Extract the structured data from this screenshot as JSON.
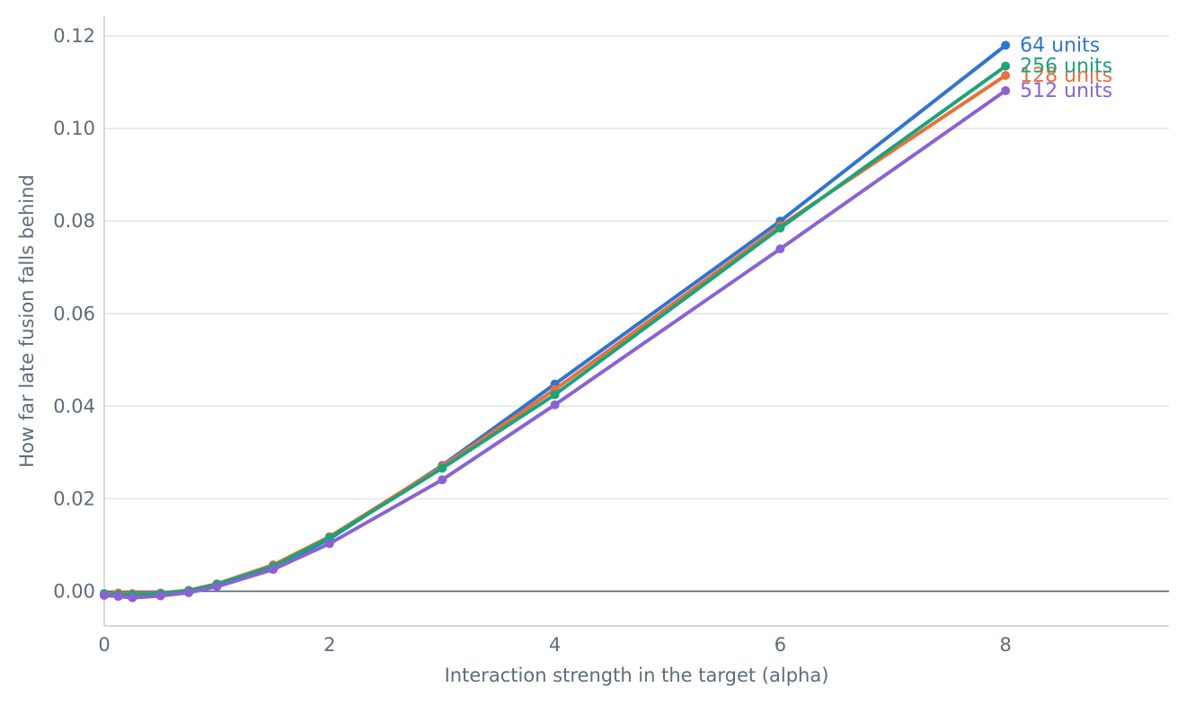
{
  "chart_data": {
    "type": "line",
    "title": "",
    "xlabel": "Interaction strength in the target (alpha)",
    "ylabel": "How far late fusion falls behind",
    "xlim": [
      0,
      9.45
    ],
    "ylim": [
      -0.0075,
      0.1243
    ],
    "x_ticks": [
      "0",
      "2",
      "4",
      "6",
      "8"
    ],
    "y_ticks": [
      "0.00",
      "0.02",
      "0.04",
      "0.06",
      "0.08",
      "0.10",
      "0.12"
    ],
    "grid": "horizontal",
    "zero_line": true,
    "legend": "direct labels at line ends",
    "x": [
      0,
      0.125,
      0.25,
      0.5,
      0.75,
      1,
      1.5,
      2,
      3,
      4,
      6,
      8
    ],
    "series": [
      {
        "name": "64 units",
        "color": "#2f74d0",
        "values": [
          -0.0005,
          -0.0008,
          -0.0006,
          -0.0005,
          0.0001,
          0.0014,
          0.0052,
          0.0113,
          0.0272,
          0.0448,
          0.08,
          0.118
        ]
      },
      {
        "name": "128 units",
        "color": "#e8703a",
        "values": [
          -0.0006,
          -0.0004,
          -0.0005,
          -0.0004,
          0.0002,
          0.0016,
          0.0057,
          0.0118,
          0.027,
          0.0436,
          0.079,
          0.1115
        ]
      },
      {
        "name": "256 units",
        "color": "#1ca37a",
        "values": [
          -0.0006,
          -0.0007,
          -0.0007,
          -0.0005,
          0.0001,
          0.0015,
          0.0054,
          0.0116,
          0.0266,
          0.0425,
          0.0785,
          0.1135
        ]
      },
      {
        "name": "512 units",
        "color": "#8a63d2",
        "values": [
          -0.0009,
          -0.0011,
          -0.0014,
          -0.001,
          -0.0003,
          0.001,
          0.0047,
          0.0103,
          0.0241,
          0.0403,
          0.074,
          0.1082
        ]
      }
    ]
  }
}
